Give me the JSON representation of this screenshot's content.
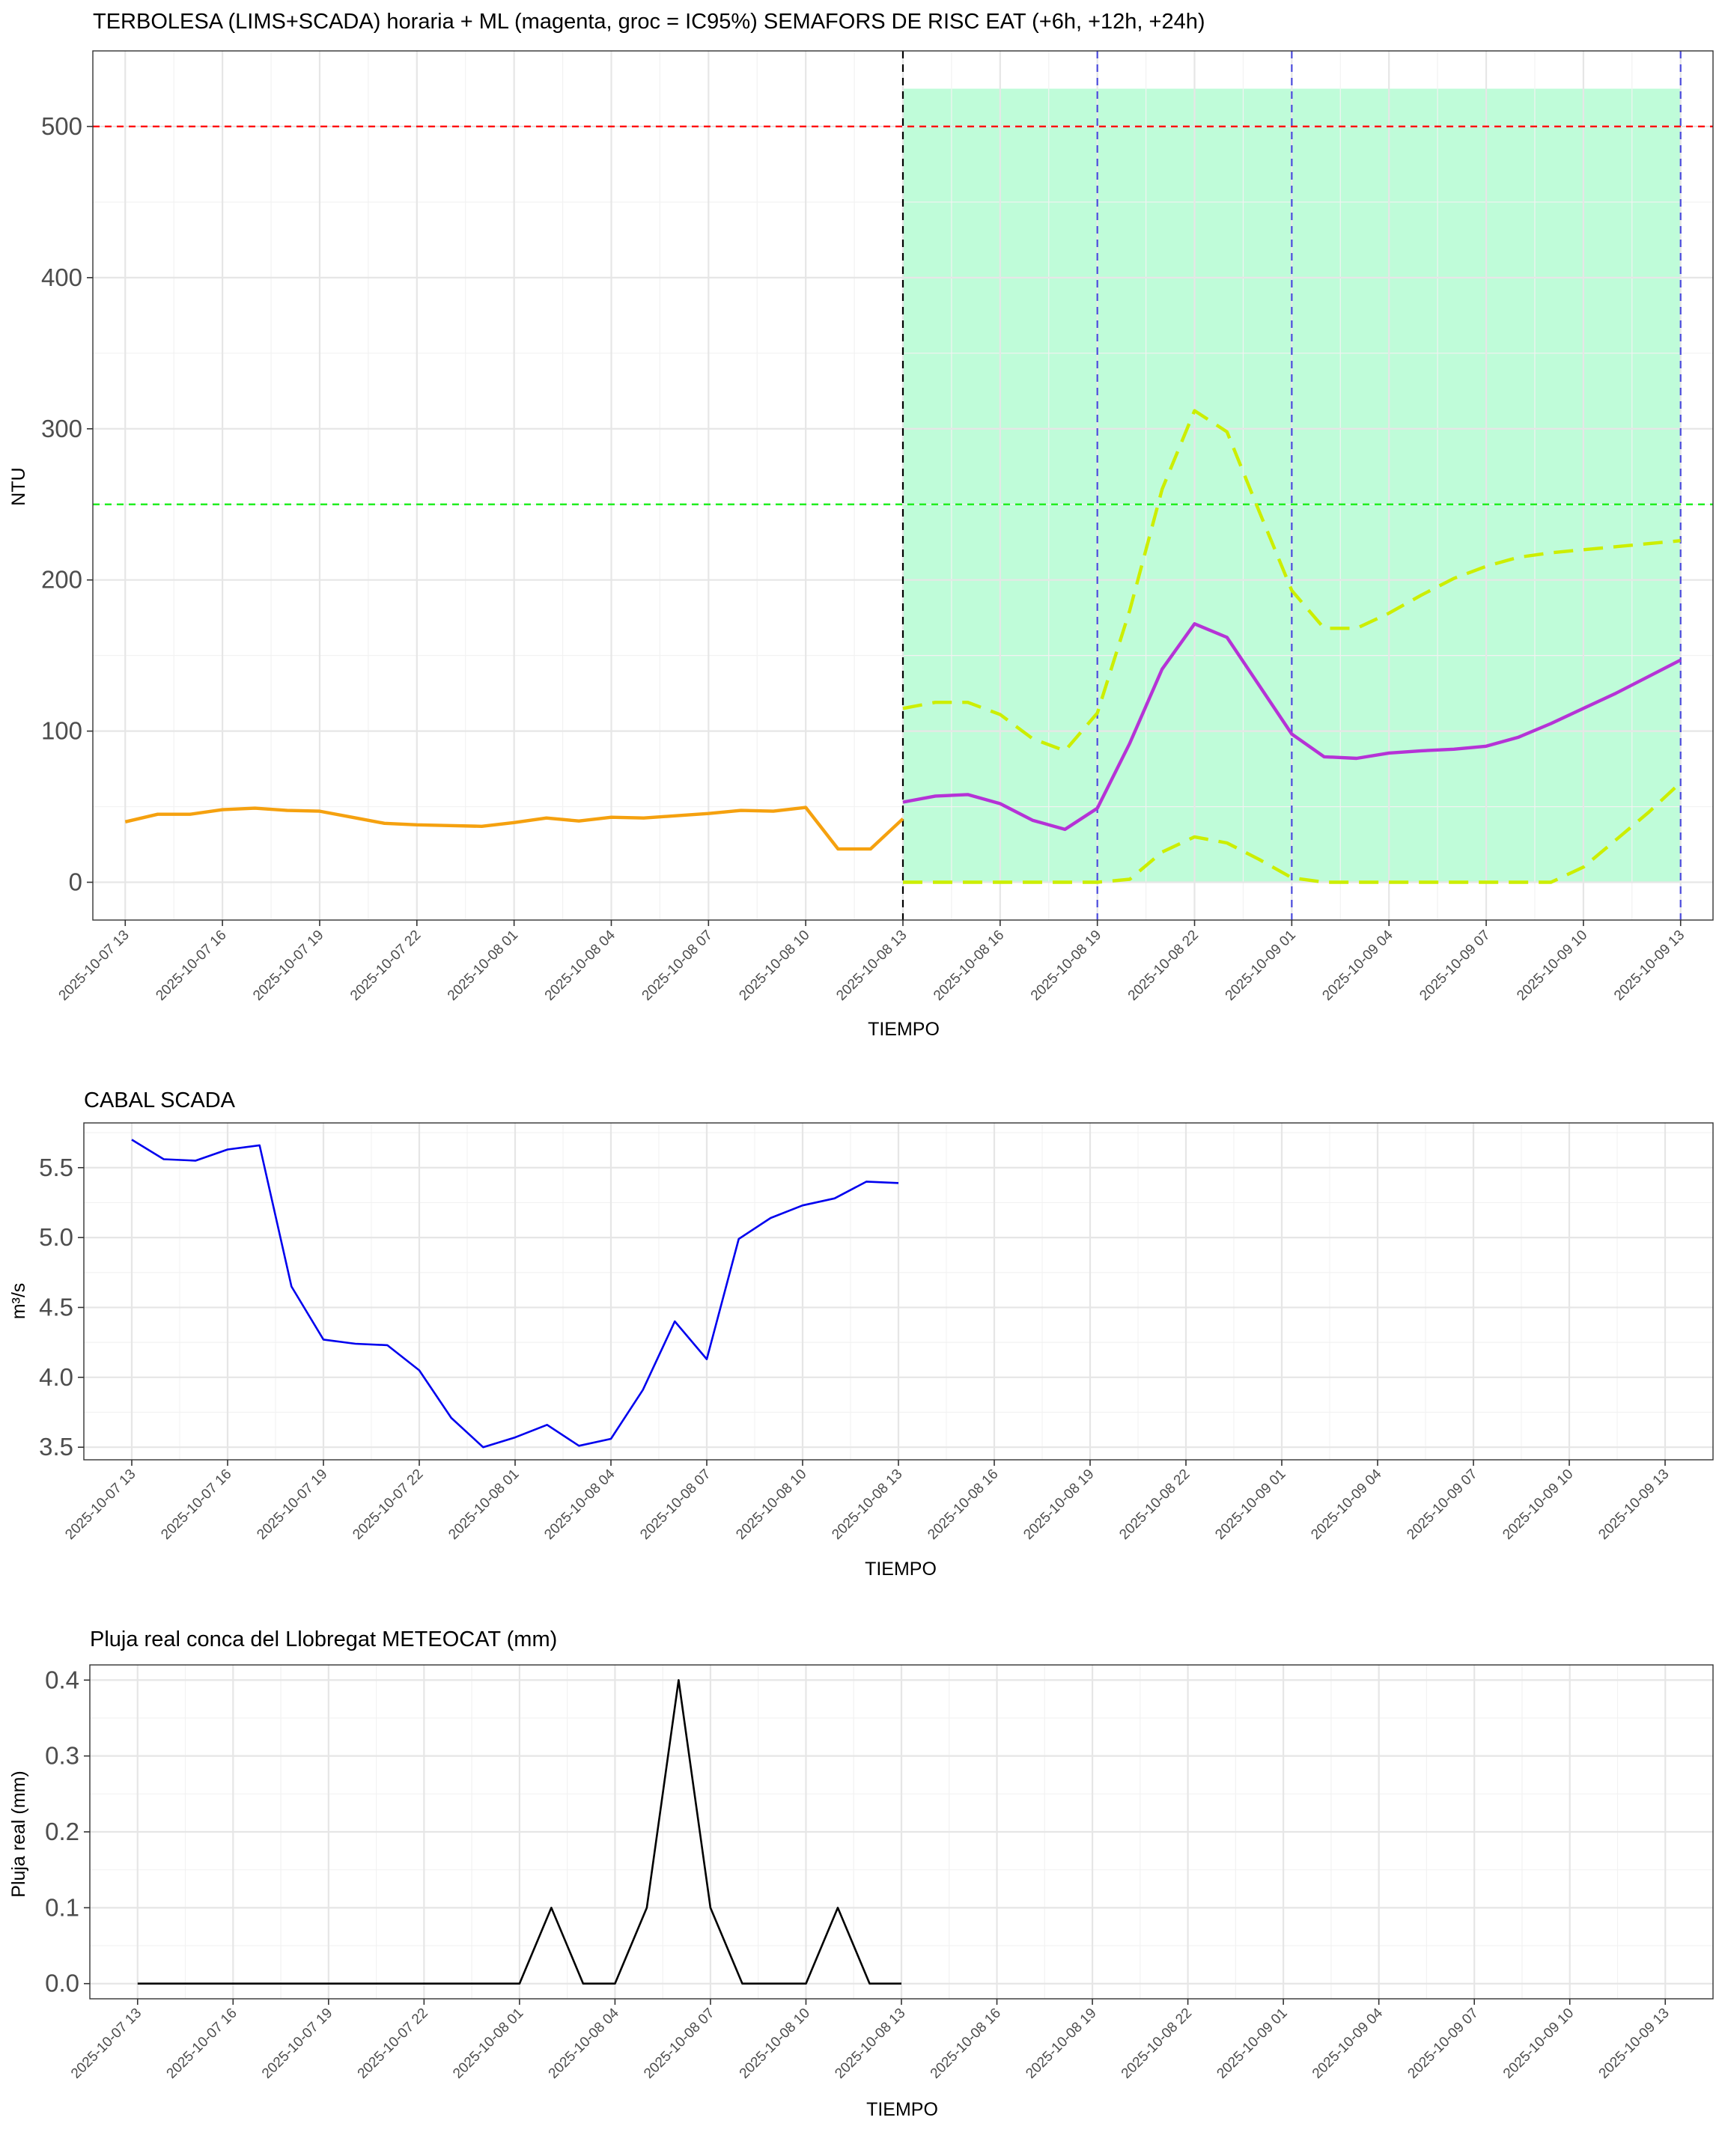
{
  "chart_data": [
    {
      "type": "line",
      "title": "TERBOLESA (LIMS+SCADA) horaria + ML (magenta, groc = IC95%) SEMAFORS DE RISC EAT (+6h, +12h, +24h)",
      "xlabel": "TIEMPO",
      "ylabel": "NTU",
      "x_axis": {
        "start": "2025-10-07 12:00",
        "end": "2025-10-09 14:00",
        "tick_labels": [
          "2025-10-07 13",
          "2025-10-07 16",
          "2025-10-07 19",
          "2025-10-07 22",
          "2025-10-08 01",
          "2025-10-08 04",
          "2025-10-08 07",
          "2025-10-08 10",
          "2025-10-08 13",
          "2025-10-08 16",
          "2025-10-08 19",
          "2025-10-08 22",
          "2025-10-09 01",
          "2025-10-09 04",
          "2025-10-09 07",
          "2025-10-09 10",
          "2025-10-09 13"
        ]
      },
      "ylim": [
        -25,
        550
      ],
      "yticks": [
        0,
        100,
        200,
        300,
        400,
        500
      ],
      "grid": true,
      "forecast_region": {
        "x_start": "2025-10-08 13",
        "x_end": "2025-10-09 13",
        "y_from": 0,
        "y_to": 525,
        "color": "#bffcd9"
      },
      "hlines": [
        {
          "y": 500,
          "color": "#ff0000"
        },
        {
          "y": 250,
          "color": "#22ee22"
        }
      ],
      "vlines": [
        {
          "x": "2025-10-08 13",
          "color": "#000000"
        },
        {
          "x": "2025-10-08 19",
          "color": "#4b4bdd"
        },
        {
          "x": "2025-10-09 01",
          "color": "#4b4bdd"
        },
        {
          "x": "2025-10-09 13",
          "color": "#4b4bdd"
        }
      ],
      "series": [
        {
          "color": "#f5a10f",
          "x": [
            "2025-10-07 13",
            "2025-10-07 14",
            "2025-10-07 15",
            "2025-10-07 16",
            "2025-10-07 17",
            "2025-10-07 18",
            "2025-10-07 19",
            "2025-10-07 20",
            "2025-10-07 21",
            "2025-10-07 22",
            "2025-10-07 23",
            "2025-10-08 00",
            "2025-10-08 01",
            "2025-10-08 02",
            "2025-10-08 03",
            "2025-10-08 04",
            "2025-10-08 05",
            "2025-10-08 06",
            "2025-10-08 07",
            "2025-10-08 08",
            "2025-10-08 09",
            "2025-10-08 10",
            "2025-10-08 11",
            "2025-10-08 12",
            "2025-10-08 13"
          ],
          "values": [
            40,
            45,
            45,
            48,
            49,
            47.5,
            47,
            43,
            39,
            38,
            37.5,
            37,
            39.5,
            42.5,
            40.5,
            43,
            42.5,
            44,
            45.5,
            47.5,
            47,
            49.5,
            22,
            22,
            42
          ]
        },
        {
          "color": "#b533d6",
          "x": [
            "2025-10-08 13",
            "2025-10-08 14",
            "2025-10-08 15",
            "2025-10-08 16",
            "2025-10-08 17",
            "2025-10-08 18",
            "2025-10-08 19",
            "2025-10-08 20",
            "2025-10-08 21",
            "2025-10-08 22",
            "2025-10-08 23",
            "2025-10-09 00",
            "2025-10-09 01",
            "2025-10-09 02",
            "2025-10-09 03",
            "2025-10-09 04",
            "2025-10-09 05",
            "2025-10-09 06",
            "2025-10-09 07",
            "2025-10-09 08",
            "2025-10-09 09",
            "2025-10-09 10",
            "2025-10-09 11",
            "2025-10-09 12",
            "2025-10-09 13"
          ],
          "values": [
            53,
            57,
            58,
            52,
            41,
            35,
            49,
            92,
            141,
            171,
            162,
            130,
            98,
            83,
            82,
            85.5,
            87,
            88,
            90,
            96,
            105,
            115,
            125,
            136,
            147
          ]
        },
        {
          "color": "#ccee00",
          "dashed": true,
          "x": [
            "2025-10-08 13",
            "2025-10-08 14",
            "2025-10-08 15",
            "2025-10-08 16",
            "2025-10-08 17",
            "2025-10-08 18",
            "2025-10-08 19",
            "2025-10-08 20",
            "2025-10-08 21",
            "2025-10-08 22",
            "2025-10-08 23",
            "2025-10-09 00",
            "2025-10-09 01",
            "2025-10-09 02",
            "2025-10-09 03",
            "2025-10-09 04",
            "2025-10-09 05",
            "2025-10-09 06",
            "2025-10-09 07",
            "2025-10-09 08",
            "2025-10-09 09",
            "2025-10-09 10",
            "2025-10-09 11",
            "2025-10-09 12",
            "2025-10-09 13"
          ],
          "values": [
            115,
            119,
            119,
            111,
            95,
            87,
            112,
            180,
            260,
            312,
            298,
            245,
            193,
            168,
            168,
            178,
            190,
            201,
            209,
            215,
            218,
            220,
            222,
            224,
            226
          ]
        },
        {
          "color": "#ccee00",
          "dashed": true,
          "x": [
            "2025-10-08 13",
            "2025-10-08 14",
            "2025-10-08 15",
            "2025-10-08 16",
            "2025-10-08 17",
            "2025-10-08 18",
            "2025-10-08 19",
            "2025-10-08 20",
            "2025-10-08 21",
            "2025-10-08 22",
            "2025-10-08 23",
            "2025-10-09 00",
            "2025-10-09 01",
            "2025-10-09 02",
            "2025-10-09 03",
            "2025-10-09 04",
            "2025-10-09 05",
            "2025-10-09 06",
            "2025-10-09 07",
            "2025-10-09 08",
            "2025-10-09 09",
            "2025-10-09 10",
            "2025-10-09 11",
            "2025-10-09 12",
            "2025-10-09 13"
          ],
          "values": [
            0,
            0,
            0,
            0,
            0,
            0,
            0,
            2,
            20,
            30,
            26,
            15,
            3,
            0,
            0,
            0,
            0,
            0,
            0,
            0,
            0,
            10,
            28,
            46,
            66
          ]
        }
      ]
    },
    {
      "type": "line",
      "title": "CABAL SCADA",
      "xlabel": "TIEMPO",
      "ylabel": "m³/s",
      "x_axis": {
        "start": "2025-10-07 11:30",
        "end": "2025-10-09 14:30",
        "tick_labels": [
          "2025-10-07 13",
          "2025-10-07 16",
          "2025-10-07 19",
          "2025-10-07 22",
          "2025-10-08 01",
          "2025-10-08 04",
          "2025-10-08 07",
          "2025-10-08 10",
          "2025-10-08 13",
          "2025-10-08 16",
          "2025-10-08 19",
          "2025-10-08 22",
          "2025-10-09 01",
          "2025-10-09 04",
          "2025-10-09 07",
          "2025-10-09 10",
          "2025-10-09 13"
        ]
      },
      "ylim": [
        3.41,
        5.82
      ],
      "yticks": [
        3.5,
        4.0,
        4.5,
        5.0,
        5.5
      ],
      "ytick_labels": [
        "3.5",
        "4.0",
        "4.5",
        "5.0",
        "5.5"
      ],
      "grid": true,
      "series": [
        {
          "color": "#0000ee",
          "x": [
            "2025-10-07 13",
            "2025-10-07 14",
            "2025-10-07 15",
            "2025-10-07 16",
            "2025-10-07 17",
            "2025-10-07 18",
            "2025-10-07 19",
            "2025-10-07 20",
            "2025-10-07 21",
            "2025-10-07 22",
            "2025-10-07 23",
            "2025-10-08 00",
            "2025-10-08 01",
            "2025-10-08 02",
            "2025-10-08 03",
            "2025-10-08 04",
            "2025-10-08 05",
            "2025-10-08 06",
            "2025-10-08 07",
            "2025-10-08 08",
            "2025-10-08 09",
            "2025-10-08 10",
            "2025-10-08 11",
            "2025-10-08 12",
            "2025-10-08 13"
          ],
          "values": [
            5.7,
            5.56,
            5.55,
            5.63,
            5.66,
            4.65,
            4.27,
            4.24,
            4.23,
            4.05,
            3.71,
            3.5,
            3.57,
            3.66,
            3.51,
            3.56,
            3.91,
            4.4,
            4.13,
            4.99,
            5.14,
            5.23,
            5.28,
            5.4,
            5.39
          ]
        }
      ]
    },
    {
      "type": "line",
      "title": "Pluja real conca del Llobregat METEOCAT (mm)",
      "xlabel": "TIEMPO",
      "ylabel": "Pluja real (mm)",
      "x_axis": {
        "start": "2025-10-07 11:30",
        "end": "2025-10-09 14:30",
        "tick_labels": [
          "2025-10-07 13",
          "2025-10-07 16",
          "2025-10-07 19",
          "2025-10-07 22",
          "2025-10-08 01",
          "2025-10-08 04",
          "2025-10-08 07",
          "2025-10-08 10",
          "2025-10-08 13",
          "2025-10-08 16",
          "2025-10-08 19",
          "2025-10-08 22",
          "2025-10-09 01",
          "2025-10-09 04",
          "2025-10-09 07",
          "2025-10-09 10",
          "2025-10-09 13"
        ]
      },
      "ylim": [
        -0.02,
        0.42
      ],
      "yticks": [
        0,
        0.1,
        0.2,
        0.3,
        0.4
      ],
      "ytick_labels": [
        "0.0",
        "0.1",
        "0.2",
        "0.3",
        "0.4"
      ],
      "grid": true,
      "series": [
        {
          "color": "#000000",
          "x": [
            "2025-10-07 13",
            "2025-10-07 14",
            "2025-10-07 15",
            "2025-10-07 16",
            "2025-10-07 17",
            "2025-10-07 18",
            "2025-10-07 19",
            "2025-10-07 20",
            "2025-10-07 21",
            "2025-10-07 22",
            "2025-10-07 23",
            "2025-10-08 00",
            "2025-10-08 01",
            "2025-10-08 02",
            "2025-10-08 03",
            "2025-10-08 04",
            "2025-10-08 05",
            "2025-10-08 06",
            "2025-10-08 07",
            "2025-10-08 08",
            "2025-10-08 09",
            "2025-10-08 10",
            "2025-10-08 11",
            "2025-10-08 12",
            "2025-10-08 13"
          ],
          "values": [
            0,
            0,
            0,
            0,
            0,
            0,
            0,
            0,
            0,
            0,
            0,
            0,
            0,
            0.1,
            0,
            0,
            0.1,
            0.4,
            0.1,
            0,
            0,
            0,
            0.1,
            0,
            0
          ]
        }
      ]
    }
  ]
}
